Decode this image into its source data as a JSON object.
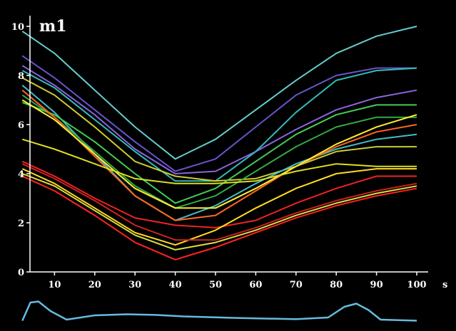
{
  "chart_data": {
    "type": "line",
    "title": "m1",
    "xlabel": "s",
    "ylabel": "",
    "xlim": [
      2,
      100
    ],
    "ylim": [
      0,
      10.4
    ],
    "xticks": [
      10,
      20,
      30,
      40,
      50,
      60,
      70,
      80,
      90,
      100
    ],
    "yticks": [
      0,
      2,
      4,
      6,
      8,
      10
    ],
    "grid": false,
    "background": "#000000",
    "axis_color": "#ffffff",
    "series": [
      {
        "color": "#66cccc",
        "values": [
          [
            2,
            9.8
          ],
          [
            10,
            8.9
          ],
          [
            20,
            7.4
          ],
          [
            30,
            5.9
          ],
          [
            40,
            4.6
          ],
          [
            50,
            5.4
          ],
          [
            60,
            6.6
          ],
          [
            70,
            7.8
          ],
          [
            80,
            8.9
          ],
          [
            90,
            9.6
          ],
          [
            100,
            10.0
          ]
        ]
      },
      {
        "color": "#6655cc",
        "values": [
          [
            2,
            8.8
          ],
          [
            10,
            7.9
          ],
          [
            20,
            6.6
          ],
          [
            30,
            5.3
          ],
          [
            40,
            4.1
          ],
          [
            50,
            4.6
          ],
          [
            60,
            5.9
          ],
          [
            70,
            7.2
          ],
          [
            80,
            8.0
          ],
          [
            90,
            8.3
          ],
          [
            100,
            8.3
          ]
        ]
      },
      {
        "color": "#8866dd",
        "values": [
          [
            2,
            8.4
          ],
          [
            10,
            7.6
          ],
          [
            20,
            6.4
          ],
          [
            30,
            5.0
          ],
          [
            40,
            4.0
          ],
          [
            50,
            4.1
          ],
          [
            60,
            4.9
          ],
          [
            70,
            5.8
          ],
          [
            80,
            6.6
          ],
          [
            90,
            7.1
          ],
          [
            100,
            7.4
          ]
        ]
      },
      {
        "color": "#33bbbb",
        "values": [
          [
            2,
            8.2
          ],
          [
            10,
            7.5
          ],
          [
            20,
            6.2
          ],
          [
            30,
            4.9
          ],
          [
            40,
            3.7
          ],
          [
            50,
            3.7
          ],
          [
            60,
            4.9
          ],
          [
            70,
            6.5
          ],
          [
            80,
            7.8
          ],
          [
            90,
            8.2
          ],
          [
            100,
            8.3
          ]
        ]
      },
      {
        "color": "#cccc33",
        "values": [
          [
            2,
            7.9
          ],
          [
            10,
            7.2
          ],
          [
            20,
            5.9
          ],
          [
            30,
            4.5
          ],
          [
            40,
            3.9
          ],
          [
            50,
            3.7
          ],
          [
            60,
            3.8
          ],
          [
            70,
            4.3
          ],
          [
            80,
            4.9
          ],
          [
            90,
            5.1
          ],
          [
            100,
            5.1
          ]
        ]
      },
      {
        "color": "#44bbcc",
        "values": [
          [
            2,
            7.6
          ],
          [
            10,
            6.5
          ],
          [
            20,
            4.8
          ],
          [
            30,
            3.1
          ],
          [
            40,
            2.1
          ],
          [
            50,
            2.7
          ],
          [
            60,
            3.6
          ],
          [
            70,
            4.4
          ],
          [
            80,
            5.0
          ],
          [
            90,
            5.4
          ],
          [
            100,
            5.6
          ]
        ]
      },
      {
        "color": "#33aa44",
        "values": [
          [
            2,
            7.2
          ],
          [
            10,
            6.3
          ],
          [
            20,
            4.9
          ],
          [
            30,
            3.5
          ],
          [
            40,
            2.6
          ],
          [
            50,
            3.1
          ],
          [
            60,
            4.1
          ],
          [
            70,
            5.1
          ],
          [
            80,
            5.9
          ],
          [
            90,
            6.3
          ],
          [
            100,
            6.3
          ]
        ]
      },
      {
        "color": "#44cc55",
        "values": [
          [
            2,
            6.9
          ],
          [
            10,
            6.4
          ],
          [
            20,
            5.3
          ],
          [
            30,
            4.0
          ],
          [
            40,
            2.8
          ],
          [
            50,
            3.4
          ],
          [
            60,
            4.5
          ],
          [
            70,
            5.6
          ],
          [
            80,
            6.4
          ],
          [
            90,
            6.8
          ],
          [
            100,
            6.8
          ]
        ]
      },
      {
        "color": "#ff6622",
        "values": [
          [
            2,
            7.4
          ],
          [
            10,
            6.3
          ],
          [
            20,
            4.7
          ],
          [
            30,
            3.1
          ],
          [
            40,
            2.1
          ],
          [
            50,
            2.3
          ],
          [
            60,
            3.3
          ],
          [
            70,
            4.3
          ],
          [
            80,
            5.1
          ],
          [
            90,
            5.7
          ],
          [
            100,
            6.0
          ]
        ]
      },
      {
        "color": "#ffee33",
        "values": [
          [
            2,
            7.0
          ],
          [
            10,
            6.2
          ],
          [
            20,
            4.8
          ],
          [
            30,
            3.4
          ],
          [
            40,
            2.6
          ],
          [
            50,
            2.6
          ],
          [
            60,
            3.4
          ],
          [
            70,
            4.3
          ],
          [
            80,
            5.2
          ],
          [
            90,
            5.9
          ],
          [
            100,
            6.4
          ]
        ]
      },
      {
        "color": "#dddd22",
        "values": [
          [
            2,
            5.4
          ],
          [
            10,
            5.0
          ],
          [
            20,
            4.4
          ],
          [
            30,
            3.8
          ],
          [
            40,
            3.6
          ],
          [
            50,
            3.6
          ],
          [
            60,
            3.7
          ],
          [
            70,
            4.1
          ],
          [
            80,
            4.4
          ],
          [
            90,
            4.3
          ],
          [
            100,
            4.3
          ]
        ]
      },
      {
        "color": "#ee2222",
        "values": [
          [
            2,
            4.5
          ],
          [
            10,
            3.9
          ],
          [
            20,
            3.0
          ],
          [
            30,
            2.2
          ],
          [
            40,
            1.9
          ],
          [
            50,
            1.8
          ],
          [
            60,
            2.1
          ],
          [
            70,
            2.8
          ],
          [
            80,
            3.4
          ],
          [
            90,
            3.9
          ],
          [
            100,
            3.9
          ]
        ]
      },
      {
        "color": "#ffdd22",
        "values": [
          [
            2,
            4.2
          ],
          [
            10,
            3.6
          ],
          [
            20,
            2.6
          ],
          [
            30,
            1.6
          ],
          [
            40,
            1.1
          ],
          [
            50,
            1.7
          ],
          [
            60,
            2.6
          ],
          [
            70,
            3.4
          ],
          [
            80,
            4.0
          ],
          [
            90,
            4.2
          ],
          [
            100,
            4.2
          ]
        ]
      },
      {
        "color": "#cc2222",
        "values": [
          [
            2,
            4.4
          ],
          [
            10,
            3.8
          ],
          [
            20,
            2.9
          ],
          [
            30,
            1.9
          ],
          [
            40,
            1.3
          ],
          [
            50,
            1.3
          ],
          [
            60,
            1.8
          ],
          [
            70,
            2.4
          ],
          [
            80,
            2.9
          ],
          [
            90,
            3.3
          ],
          [
            100,
            3.6
          ]
        ]
      },
      {
        "color": "#dddd44",
        "values": [
          [
            2,
            4.0
          ],
          [
            10,
            3.5
          ],
          [
            20,
            2.5
          ],
          [
            30,
            1.5
          ],
          [
            40,
            0.9
          ],
          [
            50,
            1.2
          ],
          [
            60,
            1.7
          ],
          [
            70,
            2.3
          ],
          [
            80,
            2.8
          ],
          [
            90,
            3.2
          ],
          [
            100,
            3.5
          ]
        ]
      },
      {
        "color": "#ff2222",
        "values": [
          [
            2,
            3.9
          ],
          [
            10,
            3.3
          ],
          [
            20,
            2.3
          ],
          [
            30,
            1.2
          ],
          [
            40,
            0.5
          ],
          [
            50,
            1.0
          ],
          [
            60,
            1.6
          ],
          [
            70,
            2.2
          ],
          [
            80,
            2.7
          ],
          [
            90,
            3.1
          ],
          [
            100,
            3.4
          ]
        ]
      }
    ],
    "bottom_trace": {
      "color": "#66bbdd",
      "values": [
        [
          2,
          0.05
        ],
        [
          4,
          0.9
        ],
        [
          6,
          0.95
        ],
        [
          9,
          0.5
        ],
        [
          13,
          0.1
        ],
        [
          20,
          0.3
        ],
        [
          28,
          0.35
        ],
        [
          35,
          0.32
        ],
        [
          42,
          0.25
        ],
        [
          55,
          0.18
        ],
        [
          70,
          0.12
        ],
        [
          78,
          0.2
        ],
        [
          82,
          0.7
        ],
        [
          85,
          0.85
        ],
        [
          88,
          0.55
        ],
        [
          91,
          0.1
        ],
        [
          100,
          0.05
        ]
      ]
    }
  }
}
